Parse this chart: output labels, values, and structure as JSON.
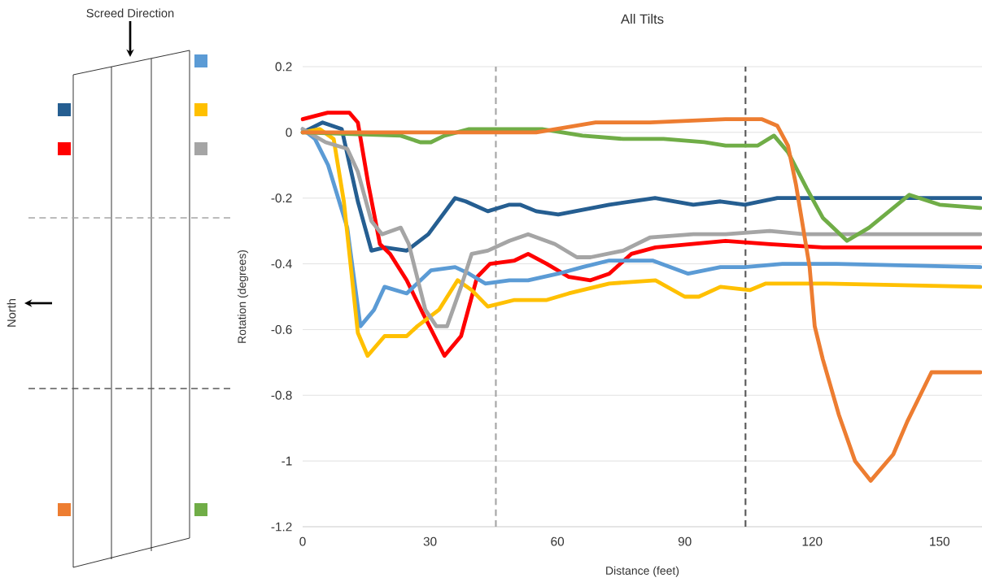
{
  "chart_data": {
    "type": "line",
    "title": "All Tilts",
    "xlabel": "Distance (feet)",
    "ylabel": "Rotation (degrees)",
    "xlim": [
      0,
      160
    ],
    "ylim": [
      -1.2,
      0.2
    ],
    "xticks": [
      0,
      30,
      60,
      90,
      120,
      150
    ],
    "yticks": [
      -1.2,
      -1,
      -0.8,
      -0.6,
      -0.4,
      -0.2,
      0,
      0.2
    ],
    "grid": "y",
    "annotations": [
      "Screed Direction",
      "North"
    ],
    "ref_lines": [
      {
        "axis": "x",
        "value": 45.5,
        "color": "#a6a6a6",
        "line_style": "dashed"
      },
      {
        "axis": "x",
        "value": 104.3,
        "color": "#595959",
        "line_style": "dashed"
      }
    ],
    "series": [
      {
        "color": "#255e91",
        "x": [
          0,
          4.7,
          9.2,
          13,
          16.2,
          19.3,
          24.5,
          29.6,
          35.9,
          38.4,
          43.6,
          48.7,
          51.2,
          55,
          60.2,
          72.2,
          83,
          92,
          98.4,
          104.1,
          111.8,
          130,
          159.6
        ],
        "values": [
          0,
          0.03,
          0.01,
          -0.21,
          -0.36,
          -0.35,
          -0.36,
          -0.31,
          -0.2,
          -0.21,
          -0.24,
          -0.22,
          -0.22,
          -0.24,
          -0.25,
          -0.22,
          -0.2,
          -0.22,
          -0.21,
          -0.22,
          -0.2,
          -0.2,
          -0.2
        ]
      },
      {
        "color": "#ff0000",
        "x": [
          0,
          5.9,
          11,
          13,
          15.5,
          18.2,
          20.6,
          24.5,
          28.3,
          33.4,
          37.3,
          41.1,
          44.1,
          49.9,
          53.1,
          57.5,
          62.7,
          67.8,
          72.2,
          77.4,
          83.1,
          91.3,
          99.6,
          110,
          122.5,
          159.6
        ],
        "values": [
          0.04,
          0.06,
          0.06,
          0.03,
          -0.16,
          -0.34,
          -0.37,
          -0.45,
          -0.55,
          -0.68,
          -0.62,
          -0.44,
          -0.4,
          -0.39,
          -0.37,
          -0.4,
          -0.44,
          -0.45,
          -0.43,
          -0.37,
          -0.35,
          -0.34,
          -0.33,
          -0.34,
          -0.35,
          -0.35
        ]
      },
      {
        "color": "#5b9bd5",
        "x": [
          0,
          2.9,
          6,
          10.5,
          13.6,
          16.8,
          19.3,
          24.5,
          30.2,
          35.9,
          39.2,
          43,
          48.7,
          53.1,
          60.2,
          65.9,
          72.2,
          82.4,
          90.8,
          98.4,
          104.1,
          113,
          125.7,
          159.6
        ],
        "values": [
          0.01,
          -0.02,
          -0.1,
          -0.29,
          -0.59,
          -0.54,
          -0.47,
          -0.49,
          -0.42,
          -0.41,
          -0.43,
          -0.46,
          -0.45,
          -0.45,
          -0.43,
          -0.41,
          -0.39,
          -0.39,
          -0.43,
          -0.41,
          -0.41,
          -0.4,
          -0.4,
          -0.41
        ]
      },
      {
        "color": "#ffc000",
        "x": [
          0,
          4,
          7.3,
          9.7,
          13,
          15.3,
          19.3,
          24.5,
          27,
          32.1,
          36.5,
          39.8,
          43.6,
          49.9,
          57.5,
          62.7,
          72.2,
          83.1,
          90,
          93.3,
          98.4,
          105.3,
          109.1,
          122.5,
          159.6
        ],
        "values": [
          0,
          0.01,
          -0.02,
          -0.21,
          -0.61,
          -0.68,
          -0.62,
          -0.62,
          -0.59,
          -0.54,
          -0.45,
          -0.48,
          -0.53,
          -0.51,
          -0.51,
          -0.49,
          -0.46,
          -0.45,
          -0.5,
          -0.5,
          -0.47,
          -0.48,
          -0.46,
          -0.46,
          -0.47
        ]
      },
      {
        "color": "#a5a5a5",
        "x": [
          0,
          5.4,
          10.5,
          13,
          16.2,
          18.7,
          23.1,
          25,
          28.9,
          31.5,
          34,
          37.3,
          39.8,
          43.6,
          48.7,
          53.1,
          59.4,
          64.6,
          67.8,
          75.5,
          81.8,
          92,
          99.6,
          110,
          118.1,
          129,
          159.6
        ],
        "values": [
          0.01,
          -0.03,
          -0.05,
          -0.12,
          -0.27,
          -0.31,
          -0.29,
          -0.34,
          -0.54,
          -0.59,
          -0.59,
          -0.47,
          -0.37,
          -0.36,
          -0.33,
          -0.31,
          -0.34,
          -0.38,
          -0.38,
          -0.36,
          -0.32,
          -0.31,
          -0.31,
          -0.3,
          -0.31,
          -0.31,
          -0.31
        ]
      },
      {
        "color": "#70ad47",
        "x": [
          0,
          23.1,
          27.7,
          30.2,
          33.4,
          39.2,
          48.7,
          56.4,
          65.9,
          75.5,
          85,
          94.6,
          99.6,
          104.1,
          107.2,
          111,
          114.3,
          118.7,
          122.5,
          128.2,
          133.4,
          142.9,
          150,
          159.6
        ],
        "values": [
          0,
          -0.01,
          -0.03,
          -0.03,
          -0.01,
          0.01,
          0.01,
          0.01,
          -0.01,
          -0.02,
          -0.02,
          -0.03,
          -0.04,
          -0.04,
          -0.04,
          -0.01,
          -0.06,
          -0.17,
          -0.26,
          -0.33,
          -0.29,
          -0.19,
          -0.22,
          -0.23
        ]
      },
      {
        "color": "#ed7d31",
        "x": [
          0,
          55,
          69,
          81.8,
          99.6,
          104.1,
          108.2,
          111.8,
          114.3,
          116.2,
          119.4,
          120.6,
          122.5,
          126.3,
          130.1,
          133.8,
          139.1,
          142.4,
          148.1,
          159.6
        ],
        "values": [
          0,
          0,
          0.03,
          0.03,
          0.04,
          0.04,
          0.04,
          0.02,
          -0.04,
          -0.16,
          -0.41,
          -0.59,
          -0.69,
          -0.86,
          -1,
          -1.06,
          -0.98,
          -0.88,
          -0.73,
          -0.73
        ]
      }
    ]
  }
}
